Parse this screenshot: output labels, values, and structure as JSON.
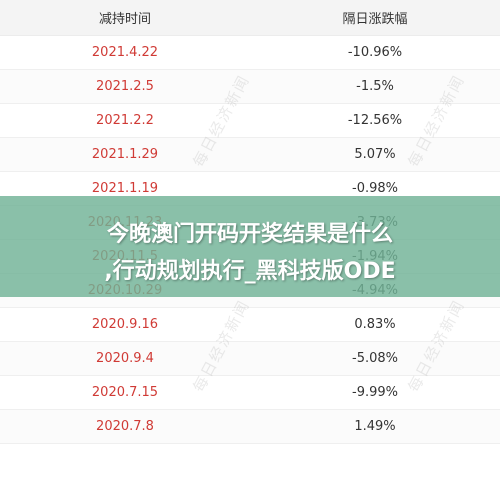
{
  "table": {
    "headers": {
      "date": "减持时间",
      "change": "隔日涨跌幅"
    },
    "rows": [
      {
        "date": "2021.4.22",
        "change": "-10.96%"
      },
      {
        "date": "2021.2.5",
        "change": "-1.5%"
      },
      {
        "date": "2021.2.2",
        "change": "-12.56%"
      },
      {
        "date": "2021.1.29",
        "change": "5.07%"
      },
      {
        "date": "2021.1.19",
        "change": "-0.98%"
      },
      {
        "date": "2020.11.23",
        "change": "-3.73%"
      },
      {
        "date": "2020.11.5",
        "change": "-1.94%"
      },
      {
        "date": "2020.10.29",
        "change": "-4.94%"
      },
      {
        "date": "2020.9.16",
        "change": "0.83%"
      },
      {
        "date": "2020.9.4",
        "change": "-5.08%"
      },
      {
        "date": "2020.7.15",
        "change": "-9.99%"
      },
      {
        "date": "2020.7.8",
        "change": "1.49%"
      }
    ]
  },
  "watermark": "每日经济新闻",
  "banner": {
    "line1": "今晚澳门开码开奖结果是什么",
    "line2": ",行动规划执行_黑科技版ODE"
  },
  "colors": {
    "date_text": "#d03a35",
    "banner_bg": "#70b296",
    "header_bg": "#f4f4f4"
  }
}
